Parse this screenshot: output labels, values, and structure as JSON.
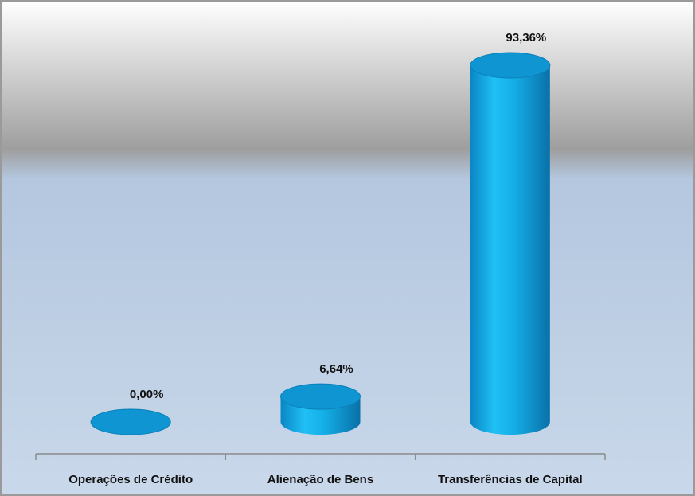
{
  "chart_data": {
    "type": "bar",
    "categories": [
      "Operações de Crédito",
      "Alienação de Bens",
      "Transferências de Capital"
    ],
    "values": [
      0,
      6.64,
      93.36
    ],
    "value_labels": [
      "0,00%",
      "6,64%",
      "93,36%"
    ],
    "color": "#0aa0dc"
  }
}
